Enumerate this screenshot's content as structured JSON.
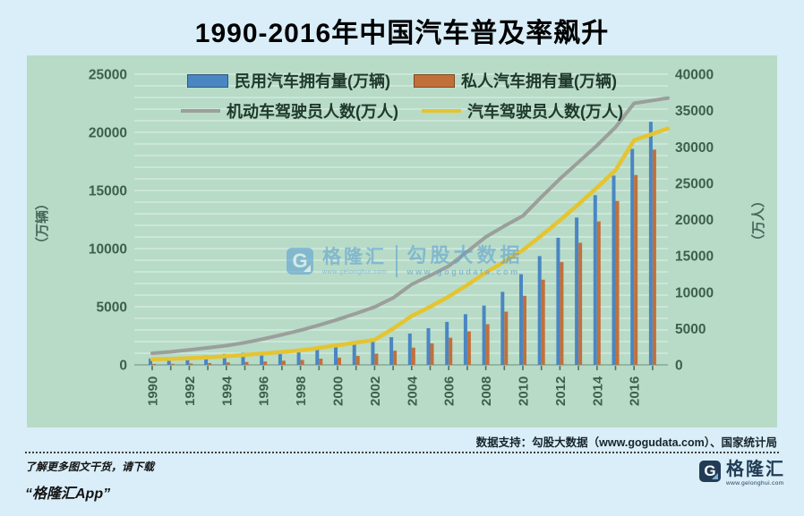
{
  "title": "1990-2016年中国汽车普及率飙升",
  "chart_data": {
    "type": "combo-bar-line",
    "x": [
      "1990",
      "1991",
      "1992",
      "1993",
      "1994",
      "1995",
      "1996",
      "1997",
      "1998",
      "1999",
      "2000",
      "2001",
      "2002",
      "2003",
      "2004",
      "2005",
      "2006",
      "2007",
      "2008",
      "2009",
      "2010",
      "2011",
      "2012",
      "2013",
      "2014",
      "2015",
      "2016",
      "2017"
    ],
    "x_tick_labels": [
      "1990",
      "1992",
      "1994",
      "1996",
      "1998",
      "2000",
      "2002",
      "2004",
      "2006",
      "2008",
      "2010",
      "2012",
      "2014",
      "2016"
    ],
    "left_axis": {
      "label": "（万辆）",
      "min": 0,
      "max": 25000,
      "tick_step": 5000,
      "grid_step": 1000
    },
    "right_axis": {
      "label": "（万人）",
      "min": 0,
      "max": 40000,
      "tick_step": 5000
    },
    "series": [
      {
        "name": "民用汽车拥有量(万辆)",
        "type": "bar",
        "axis": "left",
        "color": "#4a86c2",
        "values": [
          551,
          606,
          692,
          818,
          942,
          1040,
          1100,
          1219,
          1319,
          1453,
          1609,
          1802,
          2053,
          2383,
          2694,
          3160,
          3697,
          4358,
          5100,
          6281,
          7802,
          9356,
          10933,
          12670,
          14598,
          16284,
          18575,
          20907
        ]
      },
      {
        "name": "私人汽车拥有量(万辆)",
        "type": "bar",
        "axis": "left",
        "color": "#c2703a",
        "values": [
          82,
          96,
          118,
          156,
          205,
          250,
          290,
          358,
          424,
          534,
          625,
          771,
          969,
          1219,
          1482,
          1848,
          2333,
          2876,
          3501,
          4575,
          5939,
          7327,
          8839,
          10502,
          12339,
          14099,
          16330,
          18515
        ]
      },
      {
        "name": "机动车驾驶员人数(万人)",
        "type": "line",
        "axis": "right",
        "color": "#9b9f9b",
        "values": [
          1600,
          1800,
          2050,
          2350,
          2650,
          3050,
          3570,
          4150,
          4760,
          5470,
          6240,
          7080,
          7960,
          9220,
          11080,
          12300,
          13600,
          15600,
          17600,
          19100,
          20500,
          23100,
          25600,
          27900,
          30200,
          32700,
          36000,
          36400
        ]
      },
      {
        "name": "汽车驾驶员人数(万人)",
        "type": "line",
        "axis": "right",
        "color": "#e5c431",
        "values": [
          780,
          840,
          910,
          1040,
          1190,
          1370,
          1560,
          1770,
          2000,
          2340,
          2710,
          3060,
          3450,
          5000,
          6730,
          8000,
          9400,
          11000,
          12700,
          14200,
          15800,
          17800,
          19900,
          22100,
          24400,
          26800,
          30900,
          31800
        ]
      }
    ],
    "legend_position": "top-center",
    "grid": "horizontal-white"
  },
  "watermark": {
    "logo_letter": "G",
    "brand": "格隆汇",
    "brand_url": "www.gelonghui.com",
    "partner": "勾股大数据",
    "partner_url": "www.gogudata.com"
  },
  "footer": {
    "data_support": "数据支持：勾股大数据（www.gogudata.com）、国家统计局",
    "promo_line1": "了解更多图文干货，请下载",
    "promo_line2": "“格隆汇App”",
    "logo_letter": "G",
    "logo_text": "格隆汇",
    "logo_url": "www.gelonghui.com"
  },
  "colors": {
    "page_bg": "#d9eef8",
    "panel_bg": "#b7dbc7",
    "grid": "#e9f5ee",
    "axis_text": "#3f5e4e",
    "legend_text": "#20392c",
    "watermark": "#5d9fd2",
    "logo_navy": "#223c55",
    "title": "#000000"
  }
}
